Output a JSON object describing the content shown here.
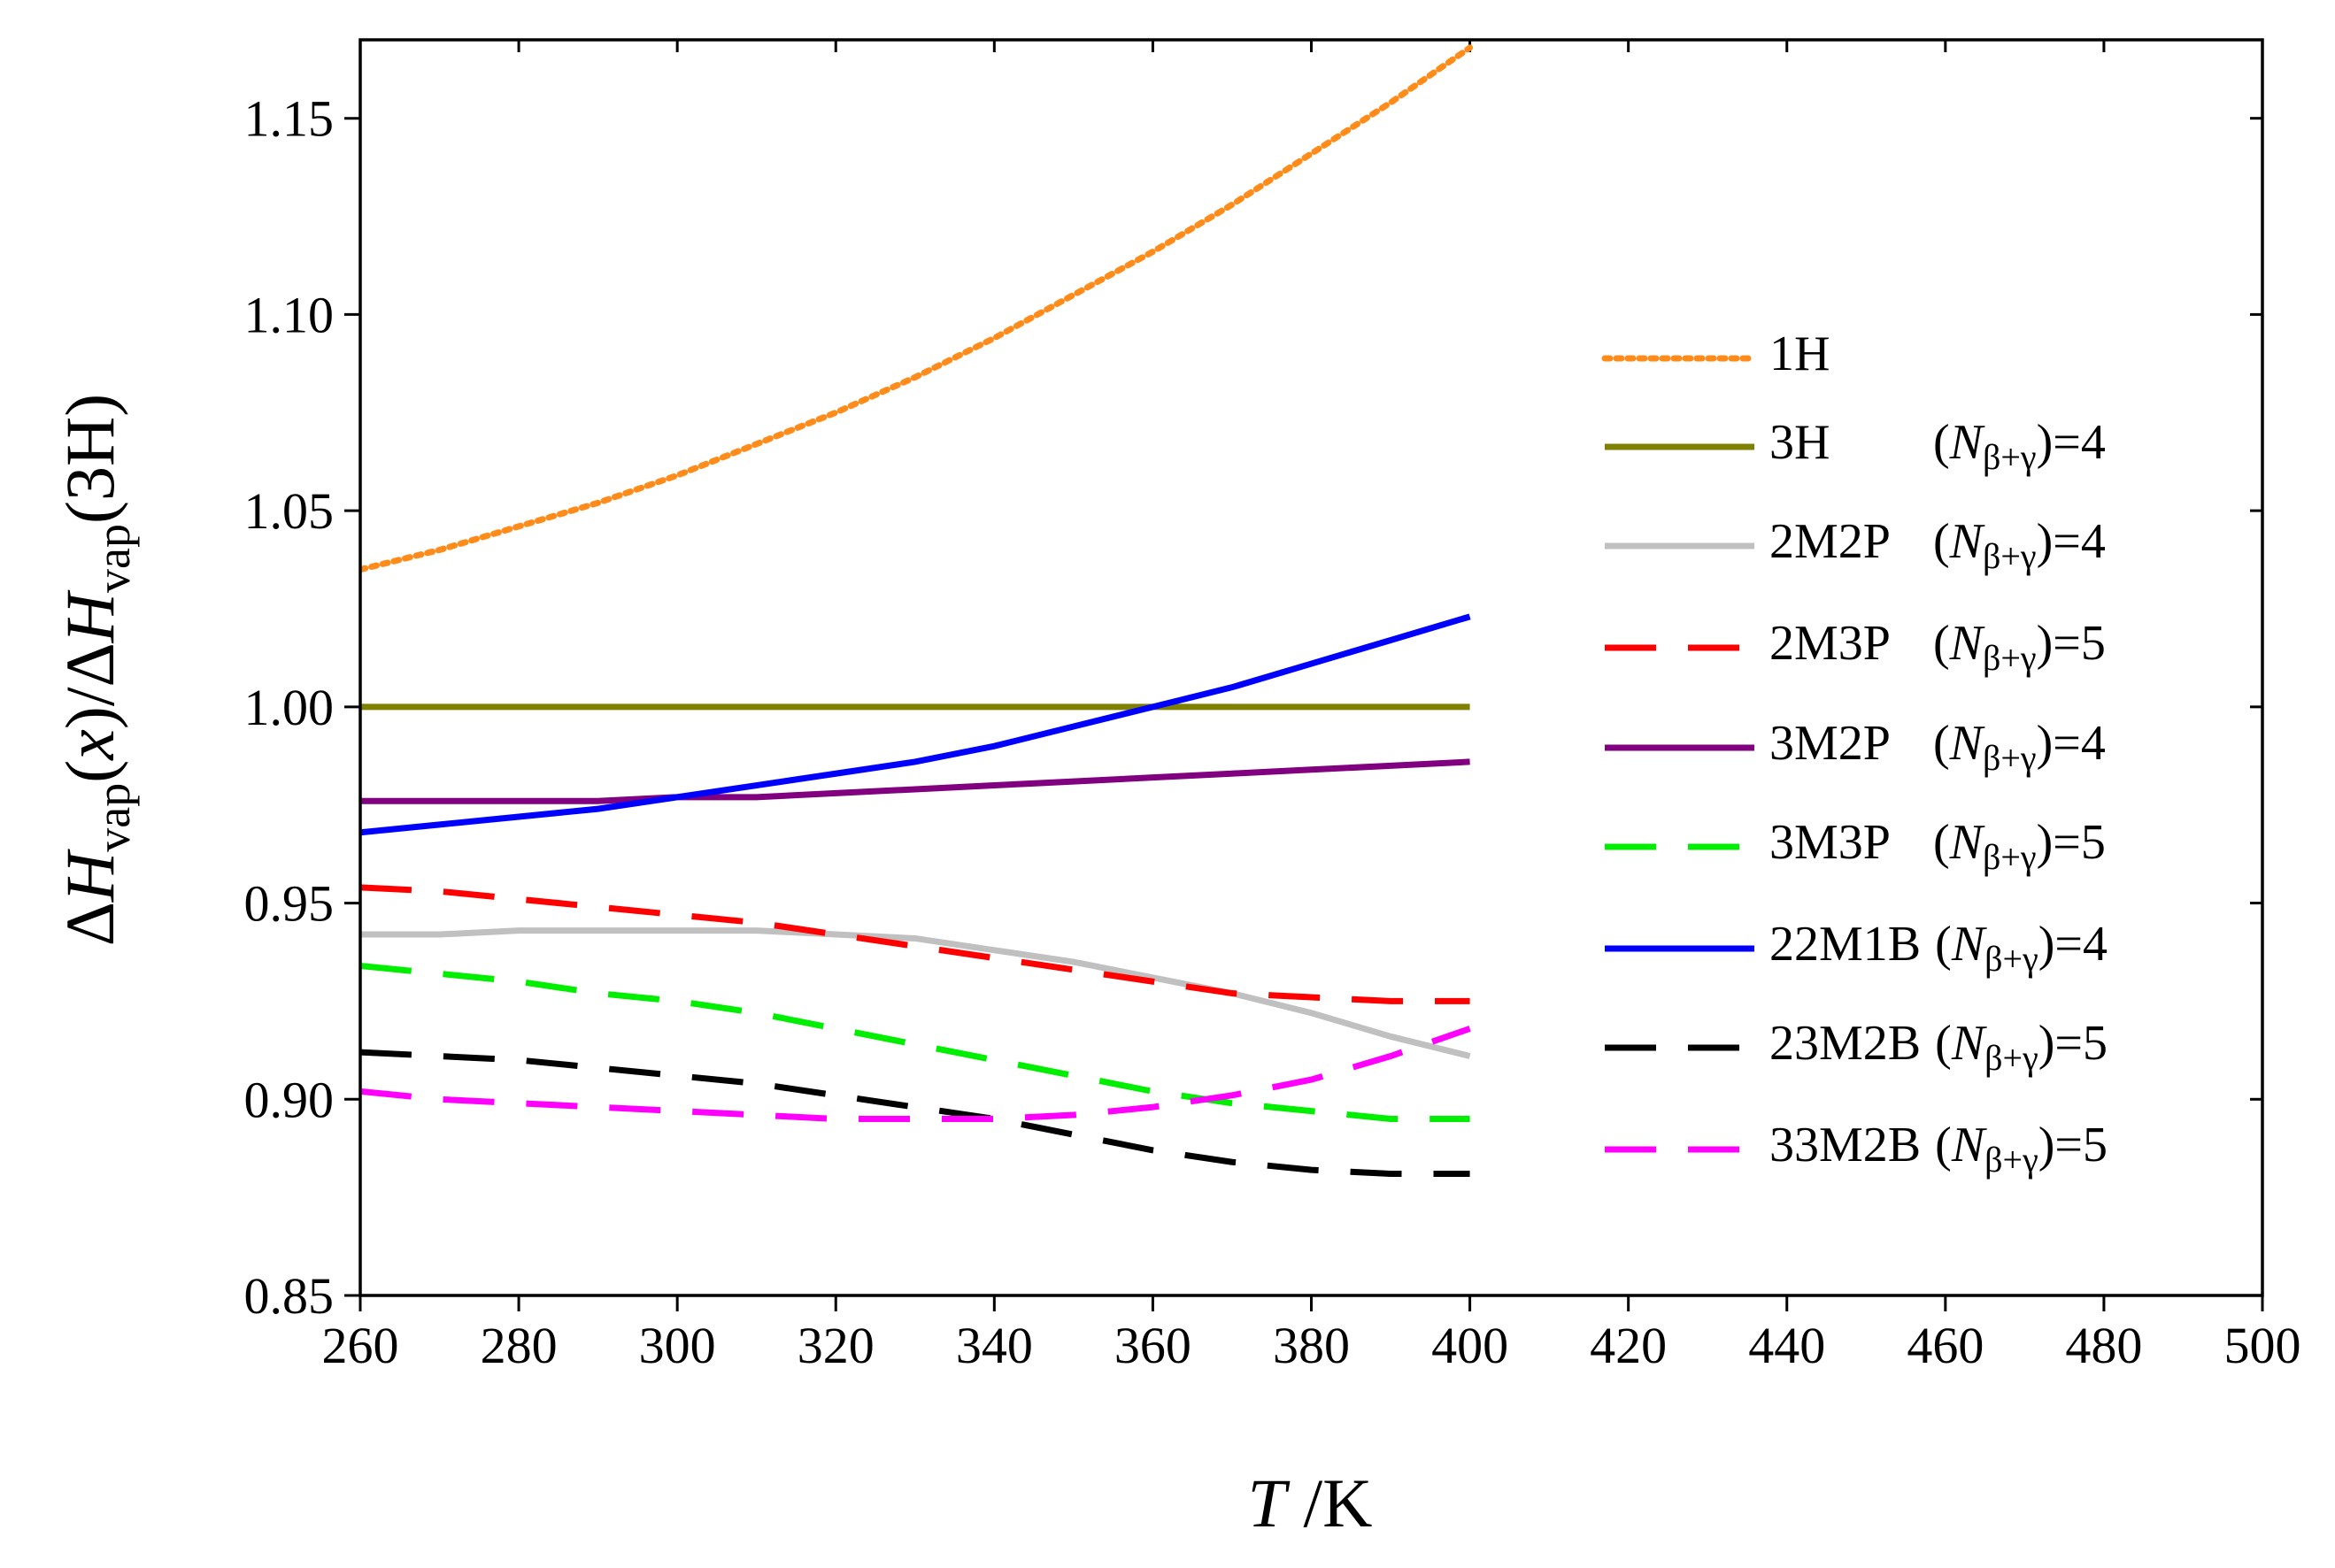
{
  "chart_data": {
    "type": "line",
    "x_label": [
      "T",
      " /K"
    ],
    "y_label": [
      "Δ",
      "H",
      "vap",
      "(",
      "x",
      ")/Δ",
      "H",
      "vap",
      "(3H)"
    ],
    "x": [
      260,
      270,
      280,
      290,
      300,
      310,
      320,
      330,
      340,
      350,
      360,
      370,
      380,
      390,
      400
    ],
    "xlim": [
      260,
      500
    ],
    "xticks": [
      260,
      280,
      300,
      320,
      340,
      360,
      380,
      400,
      420,
      440,
      460,
      480,
      500
    ],
    "ylim": [
      0.85,
      1.17
    ],
    "yticks": [
      {
        "value": 0.85,
        "label": "0.85"
      },
      {
        "value": 0.9,
        "label": "0.90"
      },
      {
        "value": 0.95,
        "label": "0.95"
      },
      {
        "value": 1.0,
        "label": "1.00"
      },
      {
        "value": 1.05,
        "label": "1.05"
      },
      {
        "value": 1.1,
        "label": "1.10"
      },
      {
        "value": 1.15,
        "label": "1.15"
      }
    ],
    "series": [
      {
        "name": "1H",
        "color": "#ff8c1a",
        "dash": "dotted",
        "values": [
          1.035,
          1.04,
          1.046,
          1.052,
          1.059,
          1.067,
          1.075,
          1.084,
          1.094,
          1.105,
          1.116,
          1.128,
          1.141,
          1.154,
          1.168
        ]
      },
      {
        "name": "3H",
        "note": [
          "(",
          "N",
          "β+γ",
          ")=4"
        ],
        "color": "#808000",
        "dash": "solid",
        "values": [
          1.0,
          1.0,
          1.0,
          1.0,
          1.0,
          1.0,
          1.0,
          1.0,
          1.0,
          1.0,
          1.0,
          1.0,
          1.0,
          1.0,
          1.0
        ]
      },
      {
        "name": "2M2P",
        "note": [
          "(",
          "N",
          "β+γ",
          ")=4"
        ],
        "color": "#c0c0c0",
        "dash": "solid",
        "values": [
          0.942,
          0.942,
          0.943,
          0.943,
          0.943,
          0.943,
          0.942,
          0.941,
          0.938,
          0.935,
          0.931,
          0.927,
          0.922,
          0.916,
          0.911
        ]
      },
      {
        "name": "2M3P",
        "note": [
          "(",
          "N",
          "β+γ",
          ")=5"
        ],
        "color": "#ff0000",
        "dash": "dashed",
        "values": [
          0.954,
          0.953,
          0.951,
          0.949,
          0.947,
          0.945,
          0.942,
          0.939,
          0.936,
          0.933,
          0.93,
          0.927,
          0.926,
          0.925,
          0.925
        ]
      },
      {
        "name": "3M2P",
        "note": [
          "(",
          "N",
          "β+γ",
          ")=4"
        ],
        "color": "#800080",
        "dash": "solid",
        "values": [
          0.976,
          0.976,
          0.976,
          0.976,
          0.977,
          0.977,
          0.978,
          0.979,
          0.98,
          0.981,
          0.982,
          0.983,
          0.984,
          0.985,
          0.986
        ]
      },
      {
        "name": "3M3P",
        "note": [
          "(",
          "N",
          "β+γ",
          ")=5"
        ],
        "color": "#00ee00",
        "dash": "dashed",
        "values": [
          0.934,
          0.932,
          0.93,
          0.927,
          0.925,
          0.922,
          0.918,
          0.914,
          0.91,
          0.906,
          0.902,
          0.899,
          0.897,
          0.895,
          0.895
        ]
      },
      {
        "name": "22M1B",
        "note": [
          "(",
          "N",
          "β+γ",
          ")=4"
        ],
        "color": "#0000ff",
        "dash": "solid",
        "values": [
          0.968,
          0.97,
          0.972,
          0.974,
          0.977,
          0.98,
          0.983,
          0.986,
          0.99,
          0.995,
          1.0,
          1.005,
          1.011,
          1.017,
          1.023
        ]
      },
      {
        "name": "23M2B",
        "note": [
          "(",
          "N",
          "β+γ",
          ")=5"
        ],
        "color": "#000000",
        "dash": "dashed",
        "values": [
          0.912,
          0.911,
          0.91,
          0.908,
          0.906,
          0.904,
          0.901,
          0.898,
          0.895,
          0.891,
          0.887,
          0.884,
          0.882,
          0.881,
          0.881
        ]
      },
      {
        "name": "33M2B",
        "note": [
          "(",
          "N",
          "β+γ",
          ")=5"
        ],
        "color": "#ff00ff",
        "dash": "dashed",
        "values": [
          0.902,
          0.9,
          0.899,
          0.898,
          0.897,
          0.896,
          0.895,
          0.895,
          0.895,
          0.896,
          0.898,
          0.901,
          0.905,
          0.911,
          0.918
        ]
      }
    ]
  }
}
